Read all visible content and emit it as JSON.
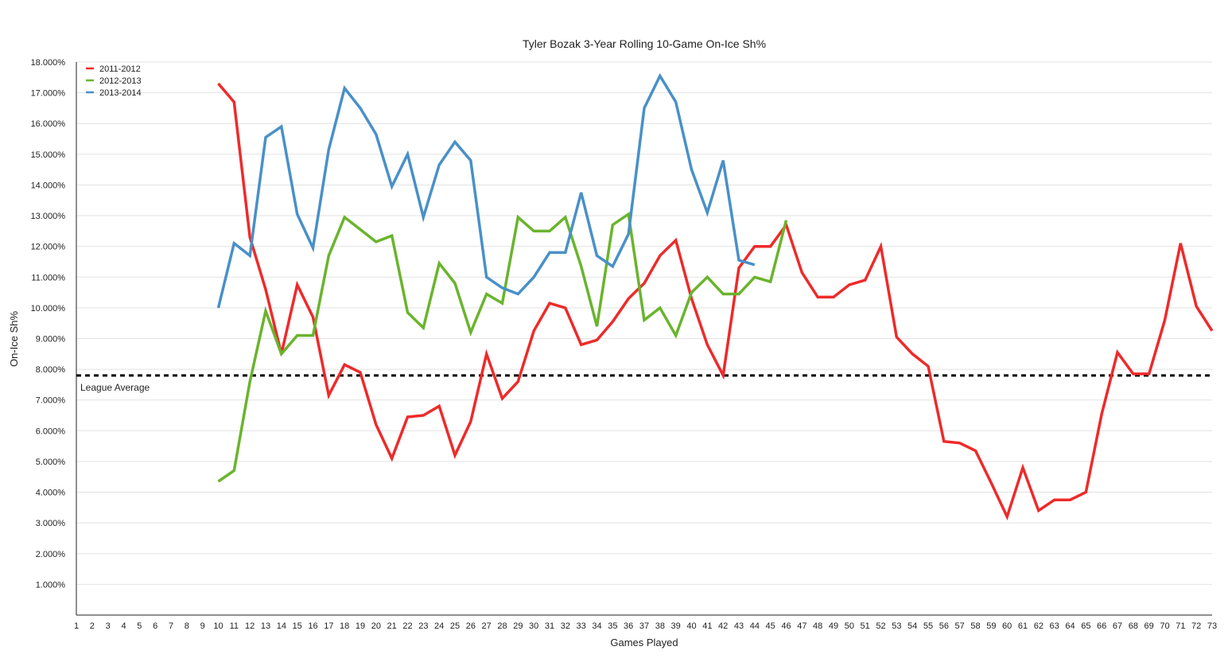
{
  "chart_data": {
    "type": "line",
    "title": "Tyler Bozak 3-Year Rolling 10-Game On-Ice Sh%",
    "xlabel": "Games Played",
    "ylabel": "On-Ice Sh%",
    "xlim": [
      1,
      73
    ],
    "ylim": [
      0,
      18
    ],
    "y_ticks": [
      "1.000%",
      "2.000%",
      "3.000%",
      "4.000%",
      "5.000%",
      "6.000%",
      "7.000%",
      "8.000%",
      "9.000%",
      "10.000%",
      "11.000%",
      "12.000%",
      "13.000%",
      "14.000%",
      "15.000%",
      "16.000%",
      "17.000%",
      "18.000%"
    ],
    "x_ticks": [
      "1",
      "2",
      "3",
      "4",
      "5",
      "6",
      "7",
      "8",
      "9",
      "10",
      "11",
      "12",
      "13",
      "14",
      "15",
      "16",
      "17",
      "18",
      "19",
      "20",
      "21",
      "22",
      "23",
      "24",
      "25",
      "26",
      "27",
      "28",
      "29",
      "30",
      "31",
      "32",
      "33",
      "34",
      "35",
      "36",
      "37",
      "38",
      "39",
      "40",
      "41",
      "42",
      "43",
      "44",
      "45",
      "46",
      "47",
      "48",
      "49",
      "50",
      "51",
      "52",
      "53",
      "54",
      "55",
      "56",
      "57",
      "58",
      "59",
      "60",
      "61",
      "62",
      "63",
      "64",
      "65",
      "66",
      "67",
      "68",
      "69",
      "70",
      "71",
      "72",
      "73"
    ],
    "grid": "horizontal",
    "legend_position": "top-left",
    "series": [
      {
        "name": "2011-2012",
        "color": "#ee2a2a",
        "x": [
          10,
          11,
          12,
          13,
          14,
          15,
          16,
          17,
          18,
          19,
          20,
          21,
          22,
          23,
          24,
          25,
          26,
          27,
          28,
          29,
          30,
          31,
          32,
          33,
          34,
          35,
          36,
          37,
          38,
          39,
          40,
          41,
          42,
          43,
          44,
          45,
          46,
          47,
          48,
          49,
          50,
          51,
          52,
          53,
          54,
          55,
          56,
          57,
          58,
          59,
          60,
          61,
          62,
          63,
          64,
          65,
          66,
          67,
          68,
          69,
          70,
          71,
          72,
          73
        ],
        "values": [
          17.3,
          16.7,
          12.3,
          10.6,
          8.5,
          10.75,
          9.7,
          7.15,
          8.15,
          7.9,
          6.2,
          5.1,
          6.45,
          6.5,
          6.8,
          5.2,
          6.3,
          8.5,
          7.05,
          7.6,
          9.25,
          10.15,
          10.0,
          8.8,
          8.95,
          9.55,
          10.3,
          10.8,
          11.7,
          12.2,
          10.3,
          8.8,
          7.8,
          11.3,
          12.0,
          12.0,
          12.7,
          11.15,
          10.35,
          10.35,
          10.75,
          10.9,
          12.0,
          9.05,
          8.5,
          8.1,
          5.65,
          5.6,
          5.35,
          4.3,
          3.2,
          4.8,
          3.4,
          3.75,
          3.75,
          4.0,
          6.55,
          8.55,
          7.85,
          7.85,
          9.6,
          12.1,
          10.05,
          9.25
        ]
      },
      {
        "name": "2012-2013",
        "color": "#6ab42d",
        "x": [
          10,
          11,
          12,
          13,
          14,
          15,
          16,
          17,
          18,
          19,
          20,
          21,
          22,
          23,
          24,
          25,
          26,
          27,
          28,
          29,
          30,
          31,
          32,
          33,
          34,
          35,
          36,
          37,
          38,
          39,
          40,
          41,
          42,
          43,
          44,
          45,
          46
        ],
        "values": [
          4.35,
          4.7,
          7.6,
          9.9,
          8.5,
          9.1,
          9.1,
          11.7,
          12.95,
          12.55,
          12.15,
          12.35,
          9.85,
          9.35,
          11.45,
          10.8,
          9.2,
          10.45,
          10.15,
          12.95,
          12.5,
          12.5,
          12.95,
          11.35,
          9.4,
          12.7,
          13.05,
          9.6,
          10.0,
          9.1,
          10.5,
          11.0,
          10.45,
          10.45,
          11.0,
          10.85,
          12.85
        ]
      },
      {
        "name": "2013-2014",
        "color": "#4990c8",
        "x": [
          10,
          11,
          12,
          13,
          14,
          15,
          16,
          17,
          18,
          19,
          20,
          21,
          22,
          23,
          24,
          25,
          26,
          27,
          28,
          29,
          30,
          31,
          32,
          33,
          34,
          35,
          36,
          37,
          38,
          39,
          40,
          41,
          42,
          43,
          44
        ],
        "values": [
          10.0,
          12.1,
          11.7,
          15.55,
          15.9,
          13.05,
          11.95,
          15.15,
          17.15,
          16.5,
          15.65,
          13.95,
          15.0,
          12.95,
          14.65,
          15.4,
          14.8,
          11.0,
          10.65,
          10.45,
          11.0,
          11.8,
          11.8,
          13.75,
          11.7,
          11.35,
          12.4,
          16.5,
          17.55,
          16.7,
          14.5,
          13.1,
          14.8,
          11.55,
          11.4
        ]
      }
    ],
    "reference_line": {
      "value": 7.8,
      "label": "League Average"
    }
  }
}
